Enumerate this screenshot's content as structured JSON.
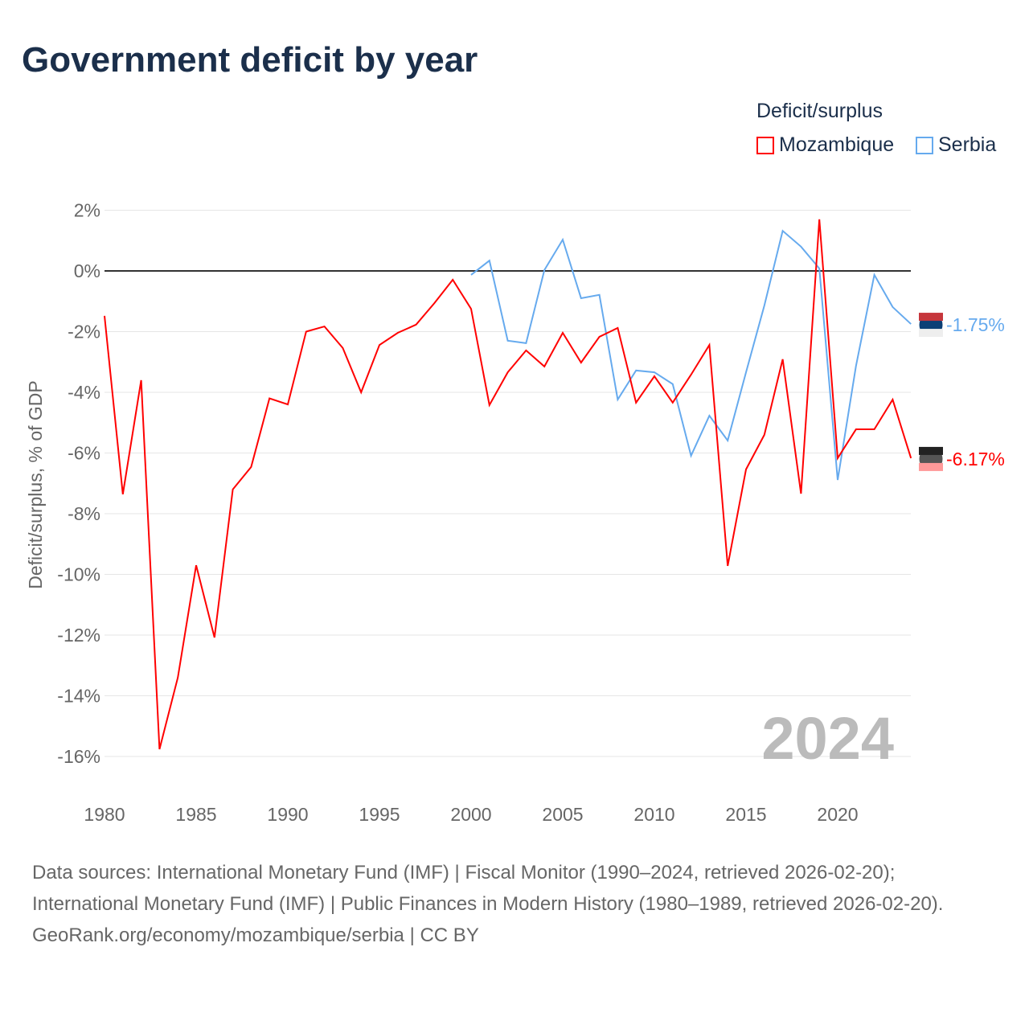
{
  "title": "Government deficit by year",
  "legend": {
    "title": "Deficit/surplus",
    "items": [
      "Mozambique",
      "Serbia"
    ]
  },
  "footer": {
    "sources": "Data sources: International Monetary Fund (IMF) | Fiscal Monitor (1990–2024, retrieved 2026-02-20); International Monetary Fund (IMF) | Public Finances in Modern History (1980–1989, retrieved 2026-02-20).",
    "credit": "GeoRank.org/economy/mozambique/serbia | CC BY"
  },
  "chart_data": {
    "type": "line",
    "title": "Government deficit by year",
    "xlabel": "",
    "ylabel": "Deficit/surplus, % of GDP",
    "xlim": [
      1980,
      2024
    ],
    "ylim": [
      -16,
      2
    ],
    "xticks": [
      1980,
      1985,
      1990,
      1995,
      2000,
      2005,
      2010,
      2015,
      2020
    ],
    "yticks": [
      2,
      0,
      -2,
      -4,
      -6,
      -8,
      -10,
      -12,
      -14,
      -16
    ],
    "ytick_labels": [
      "2%",
      "0%",
      "-2%",
      "-4%",
      "-6%",
      "-8%",
      "-10%",
      "-12%",
      "-14%",
      "-16%"
    ],
    "year_watermark": "2024",
    "series": [
      {
        "name": "Mozambique",
        "color": "#ff0000",
        "start": 1980,
        "end_label": "-6.17%",
        "values": [
          -1.48,
          -7.36,
          -3.6,
          -15.76,
          -13.4,
          -9.7,
          -12.08,
          -7.2,
          -6.46,
          -4.2,
          -4.4,
          -2.0,
          -1.83,
          -2.54,
          -4.0,
          -2.44,
          -2.04,
          -1.77,
          -1.06,
          -0.29,
          -1.25,
          -4.42,
          -3.34,
          -2.62,
          -3.15,
          -2.04,
          -3.02,
          -2.17,
          -1.88,
          -4.34,
          -3.47,
          -4.34,
          -3.42,
          -2.44,
          -9.72,
          -6.54,
          -5.4,
          -2.91,
          -7.34,
          1.7,
          -6.17,
          -5.22,
          -5.22,
          -4.24,
          -6.17
        ]
      },
      {
        "name": "Serbia",
        "color": "#66aaee",
        "start": 2000,
        "end_label": "-1.75%",
        "values": [
          -0.13,
          0.34,
          -2.3,
          -2.38,
          0.03,
          1.03,
          -0.9,
          -0.79,
          -4.24,
          -3.28,
          -3.34,
          -3.73,
          -6.09,
          -4.77,
          -5.59,
          -3.34,
          -1.14,
          1.32,
          0.8,
          0.08,
          -6.89,
          -3.13,
          -0.13,
          -1.19,
          -1.75
        ]
      }
    ]
  }
}
